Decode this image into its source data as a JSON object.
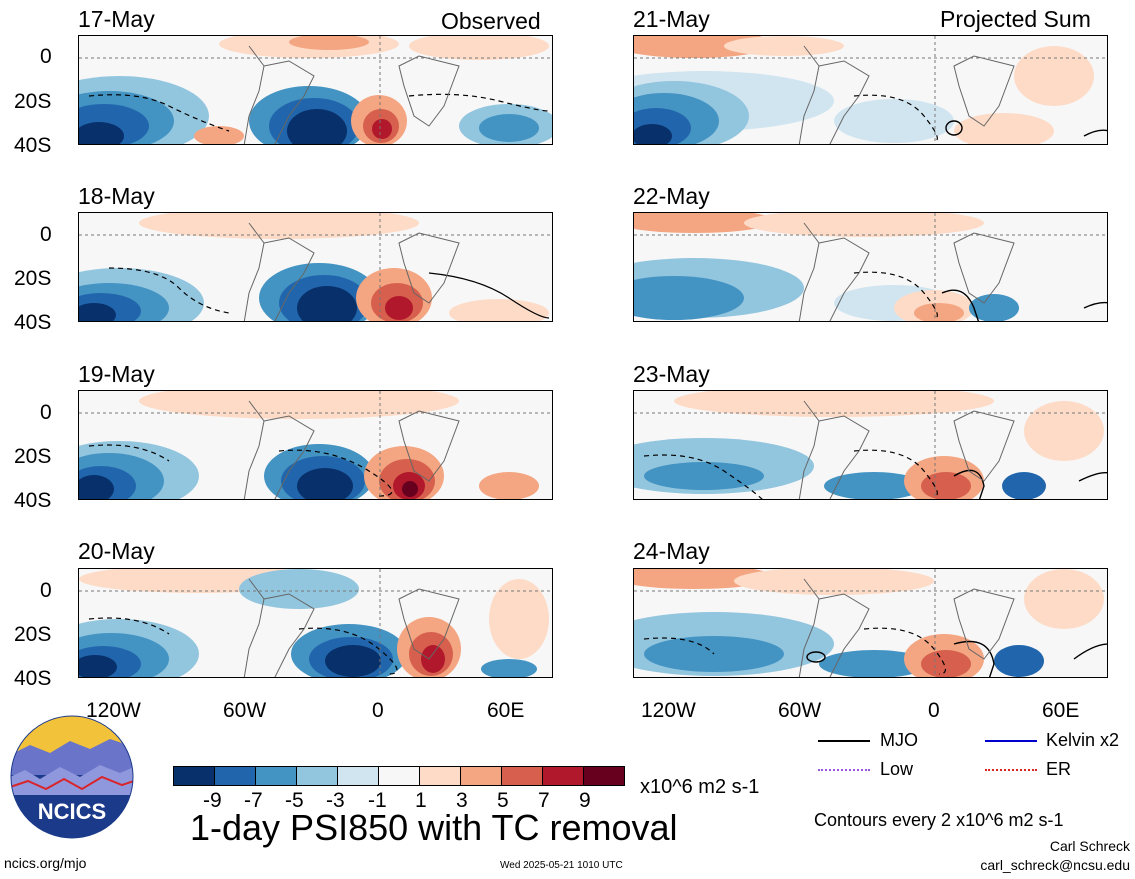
{
  "left_column": {
    "header_right": "Observed",
    "panels": [
      {
        "date": "17-May"
      },
      {
        "date": "18-May"
      },
      {
        "date": "19-May"
      },
      {
        "date": "20-May"
      }
    ]
  },
  "right_column": {
    "header_right": "Projected Sum",
    "panels": [
      {
        "date": "21-May"
      },
      {
        "date": "22-May"
      },
      {
        "date": "23-May"
      },
      {
        "date": "24-May"
      }
    ]
  },
  "axes": {
    "lat_ticks": [
      "0",
      "20S",
      "40S"
    ],
    "lon_ticks": [
      "120W",
      "60W",
      "0",
      "60E"
    ]
  },
  "colorbar": {
    "colors": [
      "#08306b",
      "#2166ac",
      "#4393c3",
      "#92c5de",
      "#d1e5f0",
      "#f7f7f7",
      "#fddbc7",
      "#f4a582",
      "#d6604d",
      "#b2182b",
      "#67001f"
    ],
    "tick_labels": [
      "-9",
      "-7",
      "-5",
      "-3",
      "-1",
      "1",
      "3",
      "5",
      "7",
      "9"
    ],
    "units": "x10^6 m2 s-1"
  },
  "title": "1-day PSI850 with TC removal",
  "legend": {
    "items": [
      {
        "label": "MJO",
        "color": "#000000"
      },
      {
        "label": "Kelvin x2",
        "color": "#0000cc"
      },
      {
        "label": "Low",
        "color": "#9955dd"
      },
      {
        "label": "ER",
        "color": "#dd2222"
      }
    ],
    "contours_note": "Contours every 2 x10^6 m2 s-1"
  },
  "logo": {
    "text": "NCICS"
  },
  "footer": {
    "left": "ncics.org/mjo",
    "center": "Wed 2025-05-21 1010 UTC",
    "author": "Carl Schreck",
    "email": "carl_schreck@ncsu.edu"
  }
}
